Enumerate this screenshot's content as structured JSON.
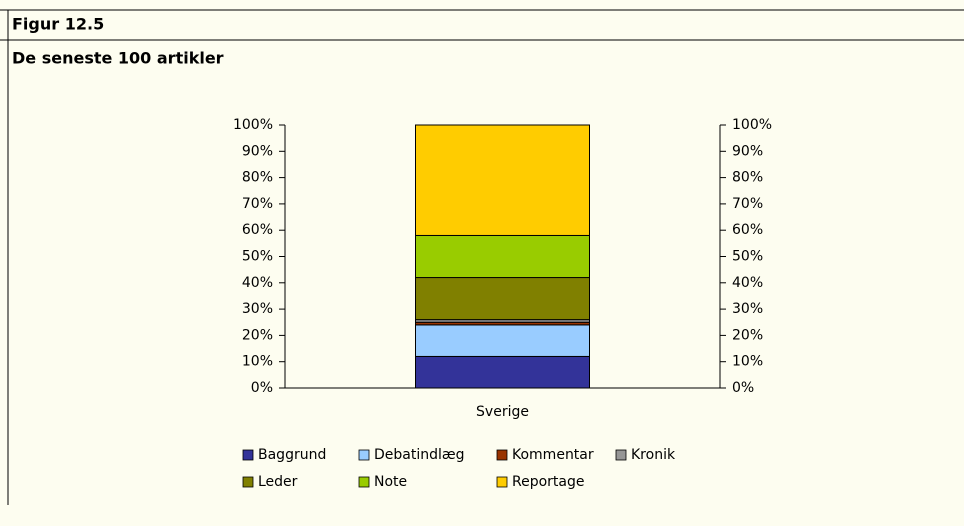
{
  "chart_data": {
    "type": "stacked_bar",
    "header": "Figur 12.5",
    "title": "De seneste 100 artikler",
    "categories": [
      "Sverige"
    ],
    "series": [
      {
        "name": "Baggrund",
        "color": "#333399",
        "values": [
          12
        ]
      },
      {
        "name": "Debatindlæg",
        "color": "#99ccff",
        "values": [
          12
        ]
      },
      {
        "name": "Kommentar",
        "color": "#993300",
        "values": [
          1
        ]
      },
      {
        "name": "Kronik",
        "color": "#969696",
        "values": [
          1
        ]
      },
      {
        "name": "Leder",
        "color": "#808000",
        "values": [
          16
        ]
      },
      {
        "name": "Note",
        "color": "#99cc00",
        "values": [
          16
        ]
      },
      {
        "name": "Reportage",
        "color": "#ffcc00",
        "values": [
          42
        ]
      }
    ],
    "ylim": [
      0,
      100
    ],
    "yticks": [
      {
        "value": 0,
        "label": "0%"
      },
      {
        "value": 10,
        "label": "10%"
      },
      {
        "value": 20,
        "label": "20%"
      },
      {
        "value": 30,
        "label": "30%"
      },
      {
        "value": 40,
        "label": "40%"
      },
      {
        "value": 50,
        "label": "50%"
      },
      {
        "value": 60,
        "label": "60%"
      },
      {
        "value": 70,
        "label": "70%"
      },
      {
        "value": 80,
        "label": "80%"
      },
      {
        "value": 90,
        "label": "90%"
      },
      {
        "value": 100,
        "label": "100%"
      }
    ],
    "y2lim": [
      0,
      100
    ],
    "y2ticks": [
      {
        "value": 0,
        "label": "0%"
      },
      {
        "value": 10,
        "label": "10%"
      },
      {
        "value": 20,
        "label": "20%"
      },
      {
        "value": 30,
        "label": "30%"
      },
      {
        "value": 40,
        "label": "40%"
      },
      {
        "value": 50,
        "label": "50%"
      },
      {
        "value": 60,
        "label": "60%"
      },
      {
        "value": 70,
        "label": "70%"
      },
      {
        "value": 80,
        "label": "80%"
      },
      {
        "value": 90,
        "label": "90%"
      },
      {
        "value": 100,
        "label": "100%"
      }
    ],
    "legend": "bottom"
  }
}
